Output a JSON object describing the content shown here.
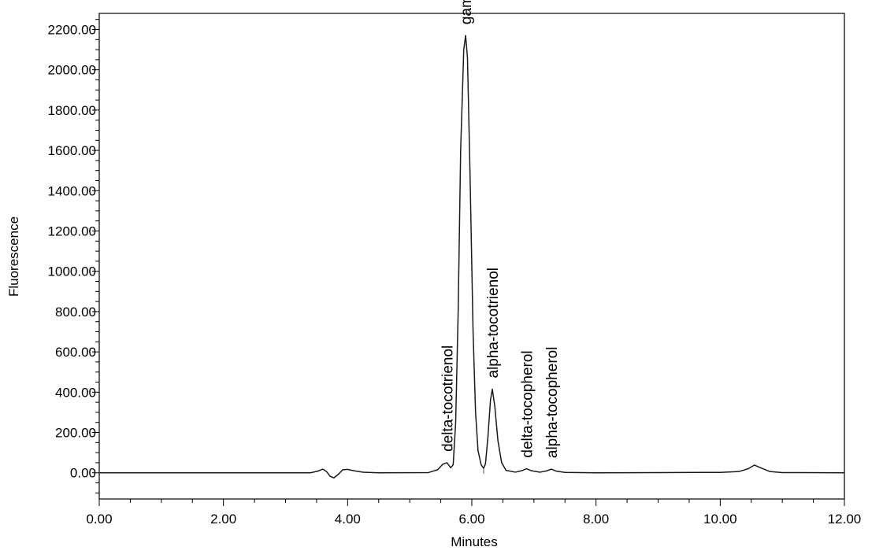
{
  "chart_data": {
    "type": "line",
    "xlabel": "Minutes",
    "ylabel": "Fluorescence",
    "xlim": [
      0,
      12
    ],
    "ylim": [
      -130,
      2280
    ],
    "x_ticks": [
      "0.00",
      "2.00",
      "4.00",
      "6.00",
      "8.00",
      "10.00",
      "12.00"
    ],
    "y_ticks": [
      "0.00",
      "200.00",
      "400.00",
      "600.00",
      "800.00",
      "1000.00",
      "1200.00",
      "1400.00",
      "1600.00",
      "1800.00",
      "2000.00",
      "2200.00"
    ],
    "grid": false,
    "line_color": "#1a1a1a",
    "series": [
      {
        "points": [
          [
            0.0,
            0.0
          ],
          [
            3.0,
            0.0
          ],
          [
            3.4,
            0.0
          ],
          [
            3.52,
            8.0
          ],
          [
            3.6,
            18.0
          ],
          [
            3.66,
            6.0
          ],
          [
            3.72,
            -18.0
          ],
          [
            3.78,
            -25.0
          ],
          [
            3.86,
            -5.0
          ],
          [
            3.92,
            15.0
          ],
          [
            4.0,
            17.0
          ],
          [
            4.1,
            10.0
          ],
          [
            4.25,
            3.0
          ],
          [
            4.5,
            0.0
          ],
          [
            5.3,
            1.0
          ],
          [
            5.45,
            15.0
          ],
          [
            5.53,
            42.0
          ],
          [
            5.6,
            50.0
          ],
          [
            5.66,
            25.0
          ],
          [
            5.7,
            40.0
          ],
          [
            5.74,
            250.0
          ],
          [
            5.78,
            800.0
          ],
          [
            5.82,
            1600.0
          ],
          [
            5.87,
            2100.0
          ],
          [
            5.9,
            2170.0
          ],
          [
            5.93,
            2060.0
          ],
          [
            5.97,
            1500.0
          ],
          [
            6.02,
            700.0
          ],
          [
            6.06,
            300.0
          ],
          [
            6.1,
            110.0
          ],
          [
            6.15,
            40.0
          ],
          [
            6.19,
            22.0
          ],
          [
            6.22,
            45.0
          ],
          [
            6.26,
            180.0
          ],
          [
            6.3,
            360.0
          ],
          [
            6.33,
            415.0
          ],
          [
            6.37,
            330.0
          ],
          [
            6.42,
            160.0
          ],
          [
            6.48,
            50.0
          ],
          [
            6.55,
            12.0
          ],
          [
            6.7,
            3.0
          ],
          [
            6.8,
            10.0
          ],
          [
            6.88,
            20.0
          ],
          [
            6.96,
            10.0
          ],
          [
            7.1,
            3.0
          ],
          [
            7.2,
            9.0
          ],
          [
            7.28,
            18.0
          ],
          [
            7.36,
            8.0
          ],
          [
            7.5,
            2.0
          ],
          [
            8.0,
            0.0
          ],
          [
            9.0,
            1.0
          ],
          [
            10.0,
            2.0
          ],
          [
            10.3,
            6.0
          ],
          [
            10.45,
            20.0
          ],
          [
            10.55,
            38.0
          ],
          [
            10.65,
            25.0
          ],
          [
            10.8,
            6.0
          ],
          [
            11.0,
            1.0
          ],
          [
            12.0,
            0.0
          ]
        ]
      }
    ],
    "annotations": [
      {
        "text": "delta-tocotrienol",
        "x": 5.6
      },
      {
        "text": "gamma-tocotrienol",
        "x": 5.9
      },
      {
        "text": "alpha-tocotrienol",
        "x": 6.33
      },
      {
        "text": "delta-tocopherol",
        "x": 6.88
      },
      {
        "text": "alpha-tocopherol",
        "x": 7.28
      }
    ]
  }
}
